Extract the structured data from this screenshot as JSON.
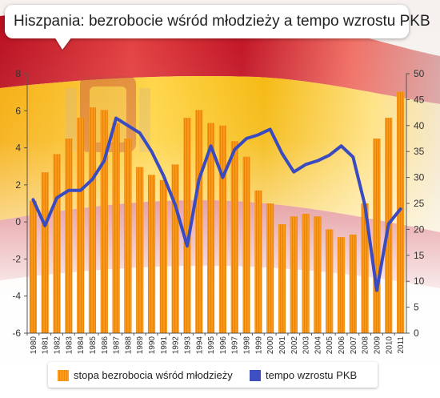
{
  "title": "Hiszpania: bezrobocie wśród młodzieży a tempo wzrostu PKB",
  "colors": {
    "bar": "#f7930f",
    "line": "#3a4bc0",
    "flag_red": "#c60b1e",
    "flag_yellow": "#ffc400"
  },
  "background_icon": "spain-flag-waving",
  "chart_data": {
    "type": "bar+line",
    "categories": [
      "1980",
      "1981",
      "1982",
      "1983",
      "1984",
      "1985",
      "1986",
      "1987",
      "1988",
      "1989",
      "1990",
      "1991",
      "1992",
      "1993",
      "1994",
      "1995",
      "1996",
      "1997",
      "1998",
      "1999",
      "2000",
      "2001",
      "2002",
      "2003",
      "2004",
      "2005",
      "2006",
      "2007",
      "2008",
      "2009",
      "2010",
      "2011"
    ],
    "left_axis": {
      "ylim": [
        -6,
        8
      ],
      "ticks": [
        "8",
        "6",
        "4",
        "2",
        "0",
        "-2",
        "-4",
        "-6"
      ]
    },
    "right_axis": {
      "ylim": [
        0,
        50
      ],
      "ticks": [
        "50",
        "45",
        "40",
        "35",
        "30",
        "25",
        "20",
        "15",
        "10",
        "5",
        "0"
      ]
    },
    "series": [
      {
        "name": "stopa bezrobocia wśród młodzieży",
        "type": "bar",
        "axis": "right",
        "values": [
          25.5,
          31,
          34.5,
          37.5,
          41.5,
          43.5,
          43,
          40.5,
          37.5,
          32,
          30.5,
          29.5,
          32.5,
          41.5,
          43,
          40.5,
          40,
          37,
          34,
          27.5,
          25,
          21,
          22.5,
          23,
          22.5,
          20,
          18.5,
          19,
          25,
          37.5,
          41.5,
          46.5
        ]
      },
      {
        "name": "tempo wzrostu PKB",
        "type": "line",
        "axis": "left",
        "values": [
          1.2,
          -0.2,
          1.3,
          1.7,
          1.7,
          2.3,
          3.3,
          5.6,
          5.2,
          4.8,
          3.8,
          2.5,
          0.9,
          -1.3,
          2.3,
          4.1,
          2.4,
          3.9,
          4.5,
          4.7,
          5.0,
          3.7,
          2.7,
          3.1,
          3.3,
          3.6,
          4.1,
          3.5,
          0.9,
          -3.7,
          -0.1,
          0.7
        ]
      }
    ],
    "legend": {
      "position": "bottom",
      "entries": [
        "stopa bezrobocia wśród młodzieży",
        "tempo wzrostu PKB"
      ]
    },
    "grid": false
  }
}
